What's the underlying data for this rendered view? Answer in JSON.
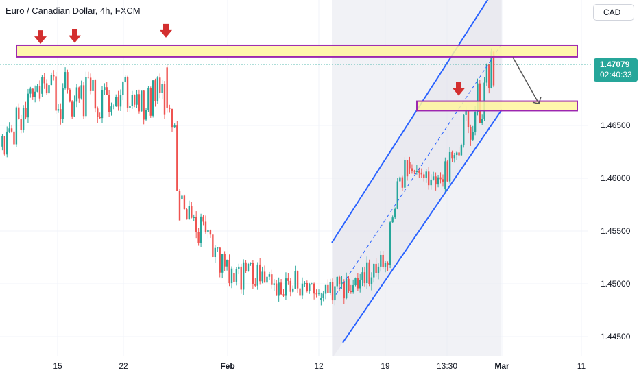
{
  "header": {
    "title": "Euro / Canadian Dollar, 4h, FXCM",
    "currency": "CAD"
  },
  "price_badge": {
    "price": "1.47079",
    "countdown": "02:40:33",
    "color": "#26a69a"
  },
  "colors": {
    "up": "#26a69a",
    "down": "#ef5350",
    "channel": "#2962ff",
    "zone_fill": "#fff59d",
    "zone_border": "#9c27b0",
    "arrow_marker": "#d32f2f",
    "projection": "#555555"
  },
  "chart_data": {
    "type": "candlestick",
    "symbol": "EUR/CAD",
    "timeframe": "4h",
    "source": "FXCM",
    "y_axis": {
      "ticks": [
        "1.46500",
        "1.46000",
        "1.45500",
        "1.45000",
        "1.44500"
      ],
      "ylim": [
        1.4425,
        1.477
      ],
      "side": "right"
    },
    "x_axis": {
      "ticks": [
        "15",
        "22",
        "Feb",
        "12",
        "19",
        "13:30",
        "Mar",
        "11"
      ]
    },
    "last_price": 1.47079,
    "resistance_zone": [
      1.4715,
      1.4726
    ],
    "support_zone": [
      1.4664,
      1.4673
    ],
    "channel": {
      "upper_line": [
        {
          "x": "12",
          "y": 1.454
        },
        {
          "x": "Mar",
          "y": 1.479
        }
      ],
      "lower_line": [
        {
          "x": "12",
          "y": 1.443
        },
        {
          "x": "Mar",
          "y": 1.4665
        }
      ]
    },
    "projection_arrow": {
      "from": 1.4708,
      "to": 1.467
    },
    "key_highs": [
      1.4722,
      1.4723,
      1.4728,
      1.4673
    ],
    "price_segments": [
      {
        "from": "Jan 11",
        "to": "Jan 14",
        "start": 1.463,
        "end": 1.468,
        "low": 1.4605,
        "high": 1.47
      },
      {
        "from": "Jan 14",
        "to": "Jan 25",
        "start": 1.468,
        "end": 1.4675,
        "low": 1.459,
        "high": 1.4722
      },
      {
        "from": "Jan 25",
        "to": "Jan 28",
        "start": 1.4705,
        "end": 1.458,
        "low": 1.456,
        "high": 1.4728
      },
      {
        "from": "Jan 28",
        "to": "Feb 2",
        "start": 1.458,
        "end": 1.451,
        "low": 1.4495,
        "high": 1.4585
      },
      {
        "from": "Feb 2",
        "to": "Feb 12",
        "start": 1.451,
        "end": 1.4495,
        "low": 1.4465,
        "high": 1.4545
      },
      {
        "from": "Feb 12",
        "to": "Feb 19",
        "start": 1.4485,
        "end": 1.452,
        "low": 1.447,
        "high": 1.454
      },
      {
        "from": "Feb 19",
        "to": "Feb 22",
        "start": 1.452,
        "end": 1.4615,
        "low": 1.4505,
        "high": 1.4645
      },
      {
        "from": "Feb 22",
        "to": "Feb 26",
        "start": 1.4615,
        "end": 1.459,
        "low": 1.458,
        "high": 1.4625
      },
      {
        "from": "Feb 26",
        "to": "Feb 29",
        "start": 1.459,
        "end": 1.4708,
        "low": 1.458,
        "high": 1.4723
      }
    ]
  }
}
